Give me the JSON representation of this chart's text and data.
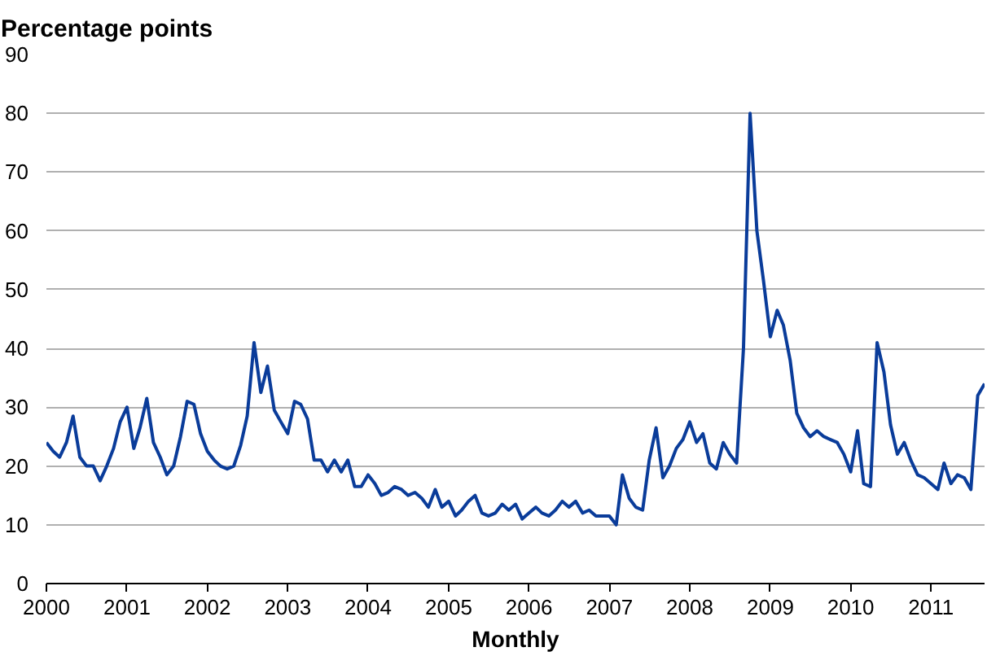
{
  "chart_data": {
    "type": "line",
    "title": "Percentage points",
    "xlabel": "Monthly",
    "x": [
      "2000-01",
      "2000-02",
      "2000-03",
      "2000-04",
      "2000-05",
      "2000-06",
      "2000-07",
      "2000-08",
      "2000-09",
      "2000-10",
      "2000-11",
      "2000-12",
      "2001-01",
      "2001-02",
      "2001-03",
      "2001-04",
      "2001-05",
      "2001-06",
      "2001-07",
      "2001-08",
      "2001-09",
      "2001-10",
      "2001-11",
      "2001-12",
      "2002-01",
      "2002-02",
      "2002-03",
      "2002-04",
      "2002-05",
      "2002-06",
      "2002-07",
      "2002-08",
      "2002-09",
      "2002-10",
      "2002-11",
      "2002-12",
      "2003-01",
      "2003-02",
      "2003-03",
      "2003-04",
      "2003-05",
      "2003-06",
      "2003-07",
      "2003-08",
      "2003-09",
      "2003-10",
      "2003-11",
      "2003-12",
      "2004-01",
      "2004-02",
      "2004-03",
      "2004-04",
      "2004-05",
      "2004-06",
      "2004-07",
      "2004-08",
      "2004-09",
      "2004-10",
      "2004-11",
      "2004-12",
      "2005-01",
      "2005-02",
      "2005-03",
      "2005-04",
      "2005-05",
      "2005-06",
      "2005-07",
      "2005-08",
      "2005-09",
      "2005-10",
      "2005-11",
      "2005-12",
      "2006-01",
      "2006-02",
      "2006-03",
      "2006-04",
      "2006-05",
      "2006-06",
      "2006-07",
      "2006-08",
      "2006-09",
      "2006-10",
      "2006-11",
      "2006-12",
      "2007-01",
      "2007-02",
      "2007-03",
      "2007-04",
      "2007-05",
      "2007-06",
      "2007-07",
      "2007-08",
      "2007-09",
      "2007-10",
      "2007-11",
      "2007-12",
      "2008-01",
      "2008-02",
      "2008-03",
      "2008-04",
      "2008-05",
      "2008-06",
      "2008-07",
      "2008-08",
      "2008-09",
      "2008-10",
      "2008-11",
      "2008-12",
      "2009-01",
      "2009-02",
      "2009-03",
      "2009-04",
      "2009-05",
      "2009-06",
      "2009-07",
      "2009-08",
      "2009-09",
      "2009-10",
      "2009-11",
      "2009-12",
      "2010-01",
      "2010-02",
      "2010-03",
      "2010-04",
      "2010-05",
      "2010-06",
      "2010-07",
      "2010-08",
      "2010-09",
      "2010-10",
      "2010-11",
      "2010-12",
      "2011-01",
      "2011-02",
      "2011-03",
      "2011-04",
      "2011-05",
      "2011-06",
      "2011-07",
      "2011-08",
      "2011-09"
    ],
    "series": [
      {
        "color": "#0a3c9a",
        "values": [
          24,
          22.5,
          21.5,
          24,
          28.5,
          21.5,
          20,
          20,
          17.5,
          20,
          23,
          27.5,
          30,
          23,
          26.5,
          31.5,
          24,
          21.5,
          18.5,
          20,
          25,
          31,
          30.5,
          25.5,
          22.5,
          21,
          20,
          19.5,
          20,
          23.5,
          28.5,
          41,
          32.5,
          37,
          29.5,
          27.5,
          25.5,
          31,
          30.5,
          28,
          21,
          21,
          19,
          21,
          19,
          21,
          16.5,
          16.5,
          18.5,
          17,
          15,
          15.5,
          16.5,
          16,
          15,
          15.5,
          14.5,
          13,
          16,
          13,
          14,
          11.5,
          12.5,
          14,
          15,
          12,
          11.5,
          12,
          13.5,
          12.5,
          13.5,
          11,
          12,
          13,
          12,
          11.5,
          12.5,
          14,
          13,
          14,
          12,
          12.5,
          11.5,
          11.5,
          11.5,
          10,
          18.5,
          14.5,
          13,
          12.5,
          21,
          26.5,
          18,
          20,
          23,
          24.5,
          27.5,
          24,
          25.5,
          20.5,
          19.5,
          24,
          22,
          20.5,
          40,
          80,
          60,
          51.5,
          42,
          46.5,
          44,
          38,
          29,
          26.5,
          25,
          26,
          25,
          24.5,
          24,
          22,
          19,
          26,
          17,
          16.5,
          41,
          36,
          27,
          22,
          24,
          21,
          18.5,
          18,
          17,
          16,
          20.5,
          17,
          18.5,
          18,
          16,
          32,
          34
        ]
      }
    ],
    "xlim": [
      "2000-01",
      "2011-09"
    ],
    "xticks": [
      "2000",
      "2001",
      "2002",
      "2003",
      "2004",
      "2005",
      "2006",
      "2007",
      "2008",
      "2009",
      "2010",
      "2011"
    ],
    "ylim": [
      0,
      90
    ],
    "yticks": [
      0,
      10,
      20,
      30,
      40,
      50,
      60,
      70,
      80,
      90
    ],
    "grid": "y",
    "marker": "none",
    "line_style": "solid"
  }
}
